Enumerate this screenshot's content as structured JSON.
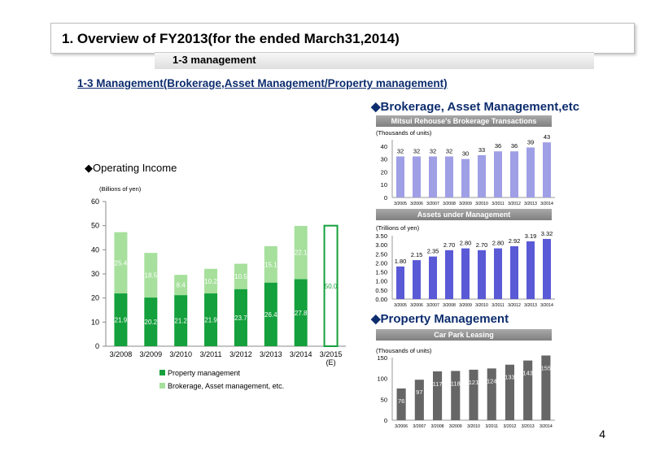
{
  "header": {
    "title": "1. Overview of FY2013(for the ended March31,2014)",
    "subtitle": "1-3 management",
    "section": "1-3 Management(Brokerage,Asset Management/Property management)"
  },
  "page_number": "4",
  "colors": {
    "dark_green": "#14a03c",
    "light_green": "#a6e09c",
    "purple": "#9f9fe6",
    "navy": "#0d2d6e"
  },
  "chart_data": [
    {
      "type": "bar",
      "stacked": true,
      "title": "◆Operating Income",
      "ylabel": "(Billions of yen)",
      "ylim": [
        0,
        60
      ],
      "yticks": [
        0,
        10,
        20,
        30,
        40,
        50,
        60
      ],
      "categories": [
        "3/2008",
        "3/2009",
        "3/2010",
        "3/2011",
        "3/2012",
        "3/2013",
        "3/2014",
        "3/2015\n(E)"
      ],
      "series": [
        {
          "name": "Property management",
          "values": [
            21.9,
            20.2,
            21.2,
            21.9,
            23.7,
            26.4,
            27.8,
            null
          ],
          "labels": [
            "21.9",
            "20.2",
            "21.2",
            "21.9",
            "23.7",
            "26.4",
            "27.8",
            ""
          ]
        },
        {
          "name": "Brokerage, Asset management, etc.",
          "values": [
            25.4,
            18.5,
            8.4,
            10.2,
            10.5,
            15.1,
            22.1,
            null
          ],
          "labels": [
            "25.4",
            "18.5",
            "8.4",
            "10.2",
            "10.5",
            "15.1",
            "22.1",
            ""
          ]
        }
      ],
      "forecast": {
        "category": "3/2015\n(E)",
        "value": 50.0,
        "label": "50.0"
      }
    },
    {
      "type": "bar",
      "heading": "◆Brokerage, Asset Management,etc",
      "title": "Mitsui Rehouse's Brokerage Transactions",
      "ylabel": "(Thousands of units)",
      "ylim": [
        0,
        45
      ],
      "yticks": [
        0,
        10,
        20,
        30,
        40
      ],
      "categories": [
        "3/2005",
        "3/2006",
        "3/2007",
        "3/2008",
        "3/2009",
        "3/2010",
        "3/2011",
        "3/2012",
        "3/2013",
        "3/2014"
      ],
      "values": [
        32,
        32,
        32,
        32,
        30,
        33,
        36,
        36,
        39,
        43
      ]
    },
    {
      "type": "bar",
      "title": "Assets under Management",
      "ylabel": "(Trillions of yen)",
      "ylim": [
        0,
        3.5
      ],
      "yticks": [
        "0.00",
        "0.50",
        "1.00",
        "1.50",
        "2.00",
        "2.50",
        "3.00",
        "3.50"
      ],
      "categories": [
        "3/2005",
        "3/2006",
        "3/2007",
        "3/2008",
        "3/2009",
        "3/2010",
        "3/2011",
        "3/2012",
        "3/2013",
        "3/2014"
      ],
      "values": [
        1.8,
        2.15,
        2.35,
        2.7,
        2.8,
        2.7,
        2.8,
        2.92,
        3.19,
        3.32
      ],
      "labels": [
        "1.80",
        "2.15",
        "2.35",
        "2.70",
        "2.80",
        "2.70",
        "2.80",
        "2.92",
        "3.19",
        "3.32"
      ]
    },
    {
      "type": "bar",
      "heading": "◆Property Management",
      "title": "Car Park Leasing",
      "ylabel": "(Thousands of units)",
      "ylim": [
        0,
        150
      ],
      "yticks": [
        0,
        50,
        100,
        150
      ],
      "categories": [
        "3/2006",
        "3/2007",
        "3/2008",
        "3/2009",
        "3/2010",
        "3/2011",
        "3/2012",
        "3/2013",
        "3/2014"
      ],
      "values": [
        76,
        97,
        117,
        118,
        121,
        124,
        133,
        143,
        155
      ]
    }
  ]
}
